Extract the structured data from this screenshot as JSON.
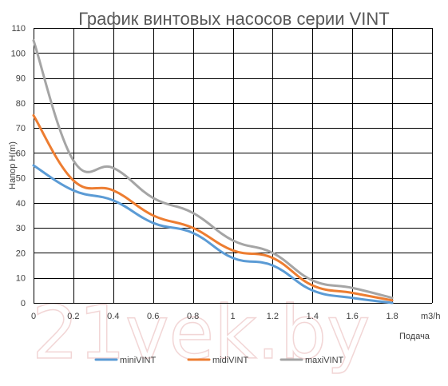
{
  "watermark": "21vek.by",
  "chart_data": {
    "type": "line",
    "title": "График винтовых насосов серии VINT",
    "xlabel": "Подача",
    "xunit": "m3/h",
    "ylabel": "Напор H(m)",
    "xlim": [
      0,
      2.0
    ],
    "ylim": [
      0,
      110
    ],
    "xticks": [
      0,
      0.2,
      0.4,
      0.6,
      0.8,
      1.0,
      1.2,
      1.4,
      1.6,
      1.8
    ],
    "xtick_labels": [
      "0",
      "0.2",
      "0.4",
      "0.6",
      "0.8",
      "1",
      "1.2",
      "1.4",
      "1.6",
      "1.8"
    ],
    "yticks": [
      0,
      10,
      20,
      30,
      40,
      50,
      60,
      70,
      80,
      90,
      100,
      110
    ],
    "grid": true,
    "legend": "bottom",
    "series": [
      {
        "name": "miniVINT",
        "color": "#5b9bd5",
        "x": [
          0,
          0.2,
          0.4,
          0.6,
          0.8,
          1.0,
          1.2,
          1.4,
          1.6,
          1.8
        ],
        "y": [
          55,
          45,
          41,
          32,
          28,
          18,
          15,
          5,
          2,
          0
        ]
      },
      {
        "name": "midiVINT",
        "color": "#ed7d31",
        "x": [
          0,
          0.2,
          0.4,
          0.6,
          0.8,
          1.0,
          1.2,
          1.4,
          1.6,
          1.8
        ],
        "y": [
          75,
          49,
          45,
          35,
          30,
          21,
          18,
          7,
          4,
          1
        ]
      },
      {
        "name": "maxiVINT",
        "color": "#a5a5a5",
        "x": [
          0,
          0.2,
          0.4,
          0.6,
          0.8,
          1.0,
          1.2,
          1.4,
          1.6,
          1.8
        ],
        "y": [
          105,
          57,
          54,
          42,
          36,
          25,
          20,
          9,
          6,
          2
        ]
      }
    ]
  }
}
